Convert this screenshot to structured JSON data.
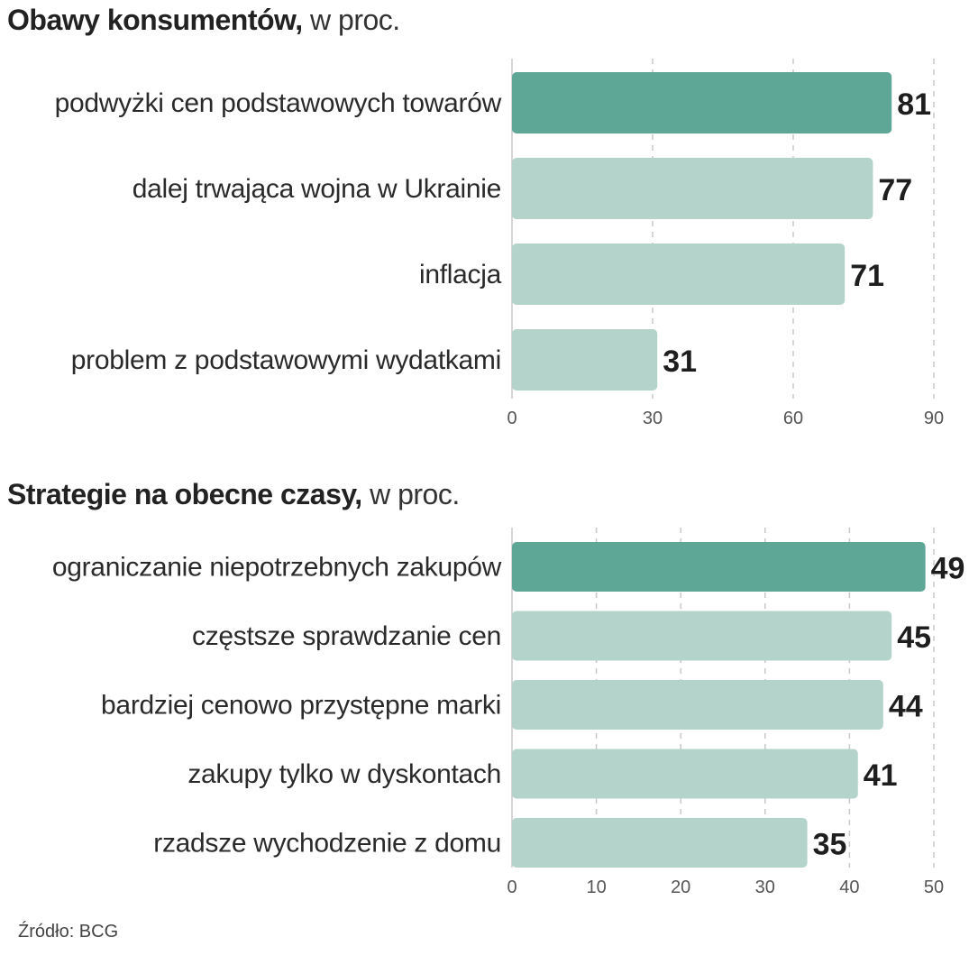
{
  "colors": {
    "highlight": "#5ea797",
    "normal": "#b3d3cb"
  },
  "chart_data": [
    {
      "type": "bar",
      "orientation": "horizontal",
      "title": "Obawy konsumentów,",
      "subtitle": "w proc.",
      "categories": [
        "podwyżki cen podstawowych towarów",
        "dalej trwająca wojna w Ukrainie",
        "inflacja",
        "problem z podstawowymi wydatkami"
      ],
      "values": [
        81,
        77,
        71,
        31
      ],
      "xlim": [
        0,
        90
      ],
      "xticks": [
        0,
        30,
        60,
        90
      ],
      "grid": true,
      "highlight_index": 0
    },
    {
      "type": "bar",
      "orientation": "horizontal",
      "title": "Strategie na obecne czasy,",
      "subtitle": "w proc.",
      "categories": [
        "ograniczanie niepotrzebnych zakupów",
        "częstsze sprawdzanie cen",
        "bardziej cenowo przystępne marki",
        "zakupy tylko w dyskontach",
        "rzadsze wychodzenie z domu"
      ],
      "values": [
        49,
        45,
        44,
        41,
        35
      ],
      "xlim": [
        0,
        50
      ],
      "xticks": [
        0,
        10,
        20,
        30,
        40,
        50
      ],
      "grid": true,
      "highlight_index": 0
    }
  ],
  "source": "Źródło: BCG"
}
